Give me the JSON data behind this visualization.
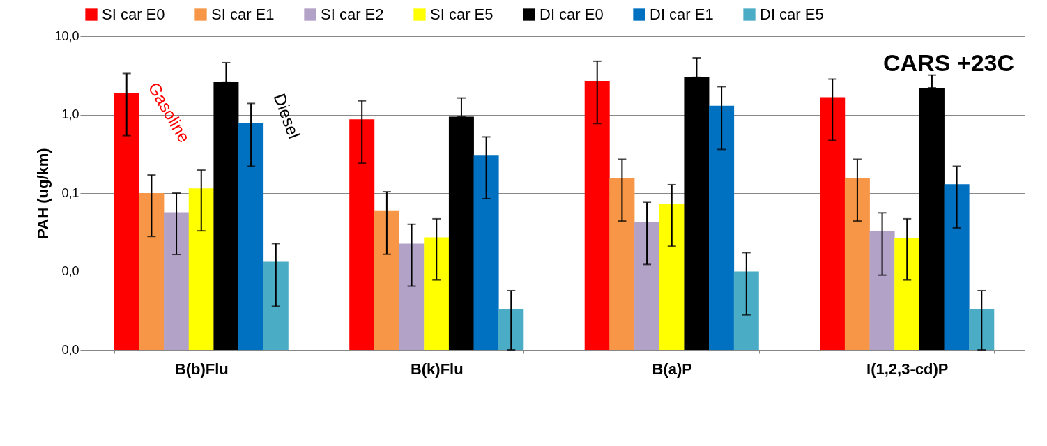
{
  "chart_data": {
    "type": "bar",
    "ylabel": "PAH (ug/km)",
    "log": "y",
    "grid": "y",
    "legend": "top",
    "categories": [
      "B(b)Flu",
      "B(k)Flu",
      "B(a)P",
      "I(1,2,3-cd)P"
    ],
    "ylim": [
      0.001,
      10
    ],
    "yticks": [
      {
        "value": 0.001,
        "label": "0,0"
      },
      {
        "value": 0.01,
        "label": "0,0"
      },
      {
        "value": 0.1,
        "label": "0,1"
      },
      {
        "value": 1,
        "label": "1,0"
      },
      {
        "value": 10,
        "label": "10,0"
      }
    ],
    "series": [
      {
        "name": "SI car E0",
        "color": "#ff0000",
        "values": [
          1.9,
          0.87,
          2.7,
          1.67
        ],
        "errors": [
          [
            0.54,
            3.35
          ],
          [
            0.24,
            1.5
          ],
          [
            0.77,
            4.8
          ],
          [
            0.47,
            2.84
          ]
        ]
      },
      {
        "name": "SI car E1",
        "color": "#f79646",
        "values": [
          0.1,
          0.059,
          0.155,
          0.155
        ],
        "errors": [
          [
            0.028,
            0.17
          ],
          [
            0.0166,
            0.104
          ],
          [
            0.044,
            0.27
          ],
          [
            0.044,
            0.27
          ]
        ]
      },
      {
        "name": "SI car E2",
        "color": "#b3a2c7",
        "values": [
          0.057,
          0.0227,
          0.043,
          0.0325
        ],
        "errors": [
          [
            0.0165,
            0.1
          ],
          [
            0.0065,
            0.04
          ],
          [
            0.0123,
            0.076
          ],
          [
            0.009,
            0.056
          ]
        ]
      },
      {
        "name": "SI car E5",
        "color": "#ffff00",
        "values": [
          0.115,
          0.0273,
          0.072,
          0.027
        ],
        "errors": [
          [
            0.033,
            0.196
          ],
          [
            0.0078,
            0.047
          ],
          [
            0.021,
            0.128
          ],
          [
            0.0078,
            0.047
          ]
        ]
      },
      {
        "name": "DI car E0",
        "color": "#000000",
        "values": [
          2.6,
          0.94,
          3.0,
          2.2
        ],
        "errors": [
          [
            2.6,
            4.6
          ],
          [
            0.94,
            1.63
          ],
          [
            3.0,
            5.3
          ],
          [
            2.2,
            3.2
          ]
        ]
      },
      {
        "name": "DI car E1",
        "color": "#0070c0",
        "values": [
          0.78,
          0.3,
          1.3,
          0.13
        ],
        "errors": [
          [
            0.22,
            1.39
          ],
          [
            0.085,
            0.52
          ],
          [
            0.36,
            2.27
          ],
          [
            0.036,
            0.22
          ]
        ]
      },
      {
        "name": "DI car E5",
        "color": "#4bacc6",
        "values": [
          0.0133,
          0.0033,
          0.01,
          0.0033
        ],
        "errors": [
          [
            0.0036,
            0.0227
          ],
          [
            0.001,
            0.0057
          ],
          [
            0.0028,
            0.0174
          ],
          [
            0.001,
            0.0057
          ]
        ]
      }
    ],
    "annotations": [
      "CARS +23C",
      "Gasoline",
      "Diesel"
    ]
  }
}
